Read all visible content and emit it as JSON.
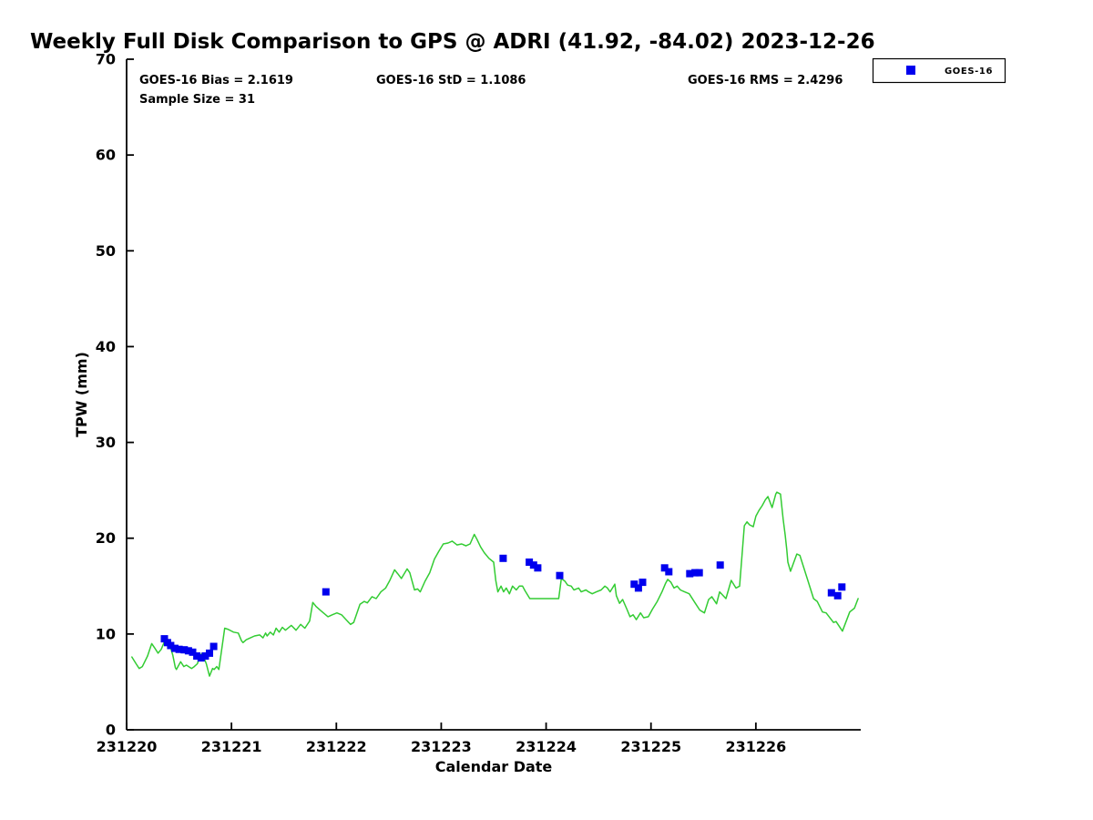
{
  "title": "Weekly Full Disk Comparison to GPS @ ADRI (41.92, -84.02) 2023-12-26",
  "stats": {
    "bias": "GOES-16 Bias = 2.1619",
    "std": "GOES-16 StD = 1.1086",
    "rms": "GOES-16 RMS = 2.4296",
    "sample_size": "Sample Size = 31"
  },
  "legend": {
    "label": "GOES-16",
    "marker_color": "#0000ee",
    "position": "top-right"
  },
  "chart_data": {
    "type": "line",
    "title": "Weekly Full Disk Comparison to GPS @ ADRI (41.92, -84.02) 2023-12-26",
    "xlabel": "Calendar Date",
    "ylabel": "TPW (mm)",
    "xlim": [
      231220,
      231227
    ],
    "ylim": [
      0,
      70
    ],
    "grid": false,
    "xticks": [
      {
        "value": 231220,
        "label": "231220"
      },
      {
        "value": 231221,
        "label": "231221"
      },
      {
        "value": 231222,
        "label": "231222"
      },
      {
        "value": 231223,
        "label": "231223"
      },
      {
        "value": 231224,
        "label": "231224"
      },
      {
        "value": 231225,
        "label": "231225"
      },
      {
        "value": 231226,
        "label": "231226"
      }
    ],
    "yticks": [
      {
        "value": 0,
        "label": "0"
      },
      {
        "value": 10,
        "label": "10"
      },
      {
        "value": 20,
        "label": "20"
      },
      {
        "value": 30,
        "label": "30"
      },
      {
        "value": 40,
        "label": "40"
      },
      {
        "value": 50,
        "label": "50"
      },
      {
        "value": 60,
        "label": "60"
      },
      {
        "value": 70,
        "label": "70"
      }
    ],
    "series": [
      {
        "name": "GPS",
        "type": "line",
        "color": "#33cc33",
        "points": [
          [
            231220.05,
            7.6
          ],
          [
            231220.09,
            6.9
          ],
          [
            231220.12,
            6.4
          ],
          [
            231220.15,
            6.6
          ],
          [
            231220.2,
            7.7
          ],
          [
            231220.23,
            8.7
          ],
          [
            231220.24,
            9.0
          ],
          [
            231220.27,
            8.5
          ],
          [
            231220.3,
            8.0
          ],
          [
            231220.33,
            8.4
          ],
          [
            231220.36,
            9.2
          ],
          [
            231220.39,
            8.8
          ],
          [
            231220.41,
            8.9
          ],
          [
            231220.44,
            7.8
          ],
          [
            231220.465,
            6.5
          ],
          [
            231220.475,
            6.3
          ],
          [
            231220.49,
            6.6
          ],
          [
            231220.515,
            7.1
          ],
          [
            231220.545,
            6.6
          ],
          [
            231220.57,
            6.75
          ],
          [
            231220.62,
            6.4
          ],
          [
            231220.645,
            6.6
          ],
          [
            231220.675,
            6.9
          ],
          [
            231220.7,
            7.7
          ],
          [
            231220.72,
            8.0
          ],
          [
            231220.76,
            6.9
          ],
          [
            231220.79,
            5.6
          ],
          [
            231220.805,
            6.0
          ],
          [
            231220.82,
            6.4
          ],
          [
            231220.835,
            6.3
          ],
          [
            231220.86,
            6.6
          ],
          [
            231220.88,
            6.3
          ],
          [
            231220.935,
            10.6
          ],
          [
            231220.965,
            10.5
          ],
          [
            231221.02,
            10.2
          ],
          [
            231221.065,
            10.1
          ],
          [
            231221.095,
            9.3
          ],
          [
            231221.11,
            9.1
          ],
          [
            231221.14,
            9.4
          ],
          [
            231221.18,
            9.6
          ],
          [
            231221.22,
            9.8
          ],
          [
            231221.27,
            9.9
          ],
          [
            231221.3,
            9.6
          ],
          [
            231221.325,
            10.1
          ],
          [
            231221.34,
            9.8
          ],
          [
            231221.37,
            10.2
          ],
          [
            231221.4,
            9.9
          ],
          [
            231221.425,
            10.6
          ],
          [
            231221.455,
            10.2
          ],
          [
            231221.485,
            10.7
          ],
          [
            231221.515,
            10.4
          ],
          [
            231221.57,
            10.9
          ],
          [
            231221.615,
            10.4
          ],
          [
            231221.66,
            11.0
          ],
          [
            231221.7,
            10.6
          ],
          [
            231221.745,
            11.35
          ],
          [
            231221.775,
            13.3
          ],
          [
            231221.805,
            12.9
          ],
          [
            231221.845,
            12.5
          ],
          [
            231221.92,
            11.8
          ],
          [
            231221.96,
            12.0
          ],
          [
            231222.005,
            12.2
          ],
          [
            231222.05,
            12.0
          ],
          [
            231222.135,
            11.0
          ],
          [
            231222.165,
            11.2
          ],
          [
            231222.225,
            13.1
          ],
          [
            231222.265,
            13.4
          ],
          [
            231222.295,
            13.25
          ],
          [
            231222.34,
            13.9
          ],
          [
            231222.38,
            13.7
          ],
          [
            231222.425,
            14.4
          ],
          [
            231222.47,
            14.8
          ],
          [
            231222.51,
            15.6
          ],
          [
            231222.555,
            16.7
          ],
          [
            231222.585,
            16.3
          ],
          [
            231222.62,
            15.8
          ],
          [
            231222.675,
            16.8
          ],
          [
            231222.7,
            16.4
          ],
          [
            231222.745,
            14.6
          ],
          [
            231222.775,
            14.7
          ],
          [
            231222.8,
            14.4
          ],
          [
            231222.845,
            15.5
          ],
          [
            231222.89,
            16.4
          ],
          [
            231222.935,
            17.8
          ],
          [
            231222.975,
            18.6
          ],
          [
            231223.02,
            19.4
          ],
          [
            231223.065,
            19.5
          ],
          [
            231223.105,
            19.7
          ],
          [
            231223.15,
            19.3
          ],
          [
            231223.195,
            19.4
          ],
          [
            231223.235,
            19.2
          ],
          [
            231223.275,
            19.4
          ],
          [
            231223.315,
            20.4
          ],
          [
            231223.34,
            19.9
          ],
          [
            231223.375,
            19.1
          ],
          [
            231223.41,
            18.5
          ],
          [
            231223.455,
            17.9
          ],
          [
            231223.5,
            17.5
          ],
          [
            231223.52,
            15.6
          ],
          [
            231223.54,
            14.4
          ],
          [
            231223.57,
            15.0
          ],
          [
            231223.595,
            14.4
          ],
          [
            231223.62,
            14.8
          ],
          [
            231223.65,
            14.2
          ],
          [
            231223.68,
            15.0
          ],
          [
            231223.715,
            14.6
          ],
          [
            231223.745,
            15.0
          ],
          [
            231223.775,
            15.0
          ],
          [
            231223.8,
            14.5
          ],
          [
            231223.845,
            13.7
          ],
          [
            231224.12,
            13.7
          ],
          [
            231224.145,
            15.8
          ],
          [
            231224.18,
            15.5
          ],
          [
            231224.205,
            15.1
          ],
          [
            231224.24,
            15.0
          ],
          [
            231224.265,
            14.6
          ],
          [
            231224.31,
            14.8
          ],
          [
            231224.335,
            14.4
          ],
          [
            231224.38,
            14.6
          ],
          [
            231224.405,
            14.4
          ],
          [
            231224.44,
            14.2
          ],
          [
            231224.48,
            14.4
          ],
          [
            231224.525,
            14.6
          ],
          [
            231224.56,
            15.0
          ],
          [
            231224.585,
            14.8
          ],
          [
            231224.61,
            14.4
          ],
          [
            231224.655,
            15.2
          ],
          [
            231224.67,
            14.0
          ],
          [
            231224.7,
            13.2
          ],
          [
            231224.73,
            13.6
          ],
          [
            231224.77,
            12.6
          ],
          [
            231224.8,
            11.8
          ],
          [
            231224.83,
            12.0
          ],
          [
            231224.86,
            11.5
          ],
          [
            231224.9,
            12.2
          ],
          [
            231224.93,
            11.7
          ],
          [
            231224.975,
            11.8
          ],
          [
            231225.015,
            12.6
          ],
          [
            231225.06,
            13.4
          ],
          [
            231225.105,
            14.4
          ],
          [
            231225.14,
            15.3
          ],
          [
            231225.16,
            15.7
          ],
          [
            231225.19,
            15.4
          ],
          [
            231225.22,
            14.8
          ],
          [
            231225.25,
            15.0
          ],
          [
            231225.28,
            14.6
          ],
          [
            231225.32,
            14.4
          ],
          [
            231225.365,
            14.2
          ],
          [
            231225.42,
            13.25
          ],
          [
            231225.465,
            12.5
          ],
          [
            231225.51,
            12.2
          ],
          [
            231225.55,
            13.6
          ],
          [
            231225.58,
            13.9
          ],
          [
            231225.625,
            13.15
          ],
          [
            231225.655,
            14.4
          ],
          [
            231225.715,
            13.7
          ],
          [
            231225.765,
            15.6
          ],
          [
            231225.81,
            14.8
          ],
          [
            231225.845,
            15.0
          ],
          [
            231225.89,
            21.3
          ],
          [
            231225.915,
            21.7
          ],
          [
            231225.94,
            21.4
          ],
          [
            231225.975,
            21.2
          ],
          [
            231226.0,
            22.3
          ],
          [
            231226.03,
            22.9
          ],
          [
            231226.06,
            23.4
          ],
          [
            231226.09,
            24.0
          ],
          [
            231226.115,
            24.35
          ],
          [
            231226.155,
            23.2
          ],
          [
            231226.19,
            24.6
          ],
          [
            231226.2,
            24.8
          ],
          [
            231226.235,
            24.6
          ],
          [
            231226.26,
            22.0
          ],
          [
            231226.28,
            20.3
          ],
          [
            231226.295,
            18.8
          ],
          [
            231226.305,
            17.5
          ],
          [
            231226.33,
            16.55
          ],
          [
            231226.39,
            18.35
          ],
          [
            231226.42,
            18.2
          ],
          [
            231226.495,
            15.6
          ],
          [
            231226.55,
            13.7
          ],
          [
            231226.585,
            13.4
          ],
          [
            231226.635,
            12.3
          ],
          [
            231226.67,
            12.2
          ],
          [
            231226.74,
            11.2
          ],
          [
            231226.765,
            11.3
          ],
          [
            231226.825,
            10.3
          ],
          [
            231226.895,
            12.3
          ],
          [
            231226.94,
            12.7
          ],
          [
            231226.975,
            13.7
          ]
        ]
      },
      {
        "name": "GOES-16",
        "type": "scatter",
        "marker": "square",
        "color": "#0000ee",
        "points": [
          [
            231220.36,
            9.5
          ],
          [
            231220.39,
            9.1
          ],
          [
            231220.42,
            8.8
          ],
          [
            231220.46,
            8.5
          ],
          [
            231220.5,
            8.4
          ],
          [
            231220.55,
            8.35
          ],
          [
            231220.59,
            8.25
          ],
          [
            231220.63,
            8.1
          ],
          [
            231220.67,
            7.7
          ],
          [
            231220.71,
            7.5
          ],
          [
            231220.75,
            7.7
          ],
          [
            231220.79,
            8.0
          ],
          [
            231220.83,
            8.7
          ],
          [
            231221.9,
            14.4
          ],
          [
            231223.59,
            17.9
          ],
          [
            231223.84,
            17.5
          ],
          [
            231223.88,
            17.2
          ],
          [
            231223.92,
            16.9
          ],
          [
            231224.13,
            16.1
          ],
          [
            231224.84,
            15.2
          ],
          [
            231224.88,
            14.8
          ],
          [
            231224.92,
            15.4
          ],
          [
            231225.13,
            16.9
          ],
          [
            231225.17,
            16.5
          ],
          [
            231225.37,
            16.3
          ],
          [
            231225.42,
            16.4
          ],
          [
            231225.46,
            16.4
          ],
          [
            231225.66,
            17.2
          ],
          [
            231226.72,
            14.3
          ],
          [
            231226.78,
            14.0
          ],
          [
            231226.82,
            14.9
          ]
        ]
      }
    ]
  }
}
